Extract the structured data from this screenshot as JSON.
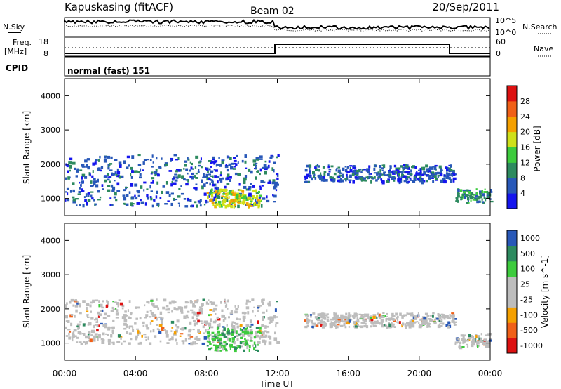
{
  "header": {
    "station": "Kapuskasing (fitACF)",
    "beam": "Beam 02",
    "date": "20/Sep/2011"
  },
  "sky_panel": {
    "left_label": "N.Sky",
    "right_label": "N.Search",
    "right_ticks": [
      "10^5",
      "10^0"
    ]
  },
  "freq_panel": {
    "left_label_line1": "Freq.",
    "left_label_line2": "[MHz]",
    "left_ticks": [
      "18",
      "8"
    ],
    "right_label": "Nave",
    "right_ticks": [
      "60",
      "0"
    ]
  },
  "cpid": {
    "label": "CPID",
    "value": "normal (fast) 151"
  },
  "colors": {
    "power_scale": [
      "#1515ee",
      "#2858b8",
      "#2d8a5f",
      "#3dcb3d",
      "#cfe01a",
      "#f5a000",
      "#f06018",
      "#dd1111"
    ],
    "velocity_scale": [
      "#dd1111",
      "#f06018",
      "#f5a000",
      "#bdbdbd",
      "#bdbdbd",
      "#3dcb3d",
      "#2d8a5f",
      "#2858b8"
    ]
  },
  "chart_data": [
    {
      "type": "heatmap",
      "title": "Power",
      "ylabel": "Slant Range [km]",
      "yticks": [
        "1000",
        "2000",
        "3000",
        "4000"
      ],
      "ylim": [
        500,
        4500
      ],
      "colorbar_label": "Power [dB]",
      "colorbar_ticks": [
        "4",
        "8",
        "12",
        "16",
        "20",
        "24",
        "28"
      ],
      "echo_bands": [
        {
          "x_start_h": 0.0,
          "x_end_h": 12.0,
          "range_km": [
            800,
            2300
          ],
          "dominant_db": 8
        },
        {
          "x_start_h": 8.0,
          "x_end_h": 11.0,
          "range_km": [
            800,
            1300
          ],
          "dominant_db": 20
        },
        {
          "x_start_h": 13.5,
          "x_end_h": 22.0,
          "range_km": [
            1500,
            2000
          ],
          "dominant_db": 8
        },
        {
          "x_start_h": 22.0,
          "x_end_h": 24.0,
          "range_km": [
            900,
            1300
          ],
          "dominant_db": 12
        }
      ]
    },
    {
      "type": "heatmap",
      "title": "Velocity",
      "ylabel": "Slant Range [km]",
      "yticks": [
        "1000",
        "2000",
        "3000",
        "4000"
      ],
      "ylim": [
        500,
        4500
      ],
      "colorbar_label": "Velocity [m s^-1]",
      "colorbar_ticks": [
        "1000",
        "500",
        "100",
        "25",
        "-25",
        "-100",
        "-500",
        "-1000"
      ],
      "xlabel": "Time UT",
      "xticks": [
        "00:00",
        "04:00",
        "08:00",
        "12:00",
        "16:00",
        "20:00",
        "00:00"
      ],
      "echo_bands": [
        {
          "x_start_h": 0.0,
          "x_end_h": 12.0,
          "range_km": [
            1000,
            2300
          ],
          "dominant_velocity": "-25 to 25"
        },
        {
          "x_start_h": 8.0,
          "x_end_h": 11.0,
          "range_km": [
            800,
            1500
          ],
          "dominant_velocity": "100 to 500"
        },
        {
          "x_start_h": 13.5,
          "x_end_h": 22.0,
          "range_km": [
            1500,
            1900
          ],
          "dominant_velocity": "-25 to 25"
        },
        {
          "x_start_h": 22.0,
          "x_end_h": 24.0,
          "range_km": [
            900,
            1300
          ],
          "dominant_velocity": "-25 to 25"
        }
      ]
    }
  ]
}
